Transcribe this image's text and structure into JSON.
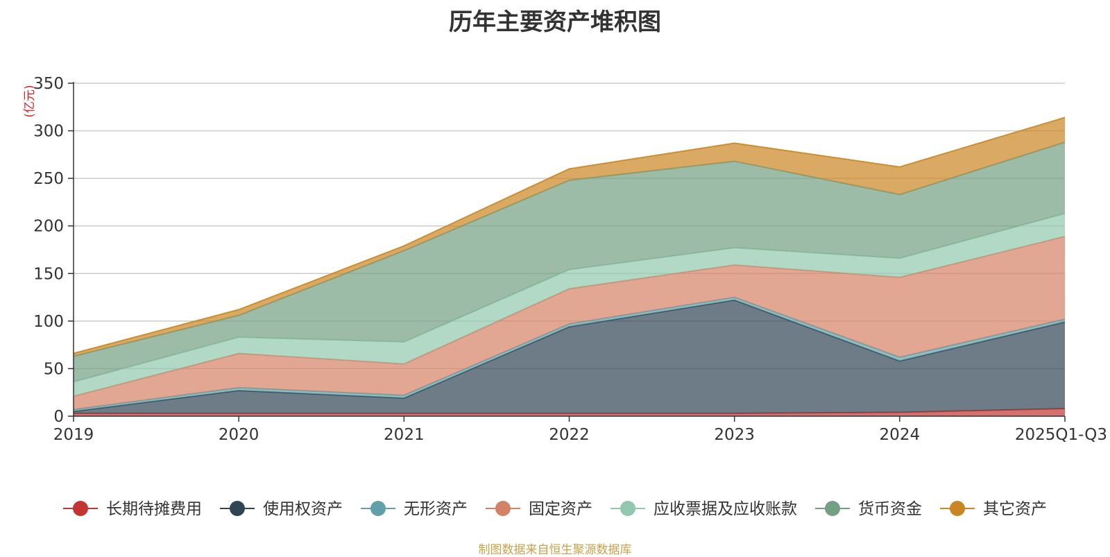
{
  "chart_data": {
    "type": "area",
    "stacked": true,
    "title": "历年主要资产堆积图",
    "unit_label": "(亿元)",
    "categories": [
      "2019",
      "2020",
      "2021",
      "2022",
      "2023",
      "2024",
      "2025Q1-Q3"
    ],
    "ylim": [
      0,
      350
    ],
    "yticks": [
      0,
      50,
      100,
      150,
      200,
      250,
      300,
      350
    ],
    "grid": true,
    "legend_position": "bottom",
    "series": [
      {
        "name": "长期待摊费用",
        "color": "#c23531",
        "values": [
          3,
          3,
          3,
          3,
          3,
          4,
          8
        ]
      },
      {
        "name": "使用权资产",
        "color": "#2f4554",
        "values": [
          2,
          24,
          16,
          91,
          119,
          54,
          91
        ]
      },
      {
        "name": "无形资产",
        "color": "#61a0a8",
        "values": [
          2,
          3,
          3,
          3,
          3,
          4,
          3
        ]
      },
      {
        "name": "固定资产",
        "color": "#d48265",
        "values": [
          14,
          36,
          33,
          37,
          34,
          84,
          87
        ]
      },
      {
        "name": "应收票据及应收账款",
        "color": "#91c7ae",
        "values": [
          15,
          17,
          23,
          20,
          18,
          20,
          24
        ]
      },
      {
        "name": "货币资金",
        "color": "#749f83",
        "values": [
          27,
          23,
          96,
          94,
          91,
          67,
          75
        ]
      },
      {
        "name": "其它资产",
        "color": "#ca8622",
        "values": [
          3,
          6,
          5,
          12,
          19,
          29,
          26
        ]
      }
    ]
  },
  "source_note": "制图数据来自恒生聚源数据库"
}
